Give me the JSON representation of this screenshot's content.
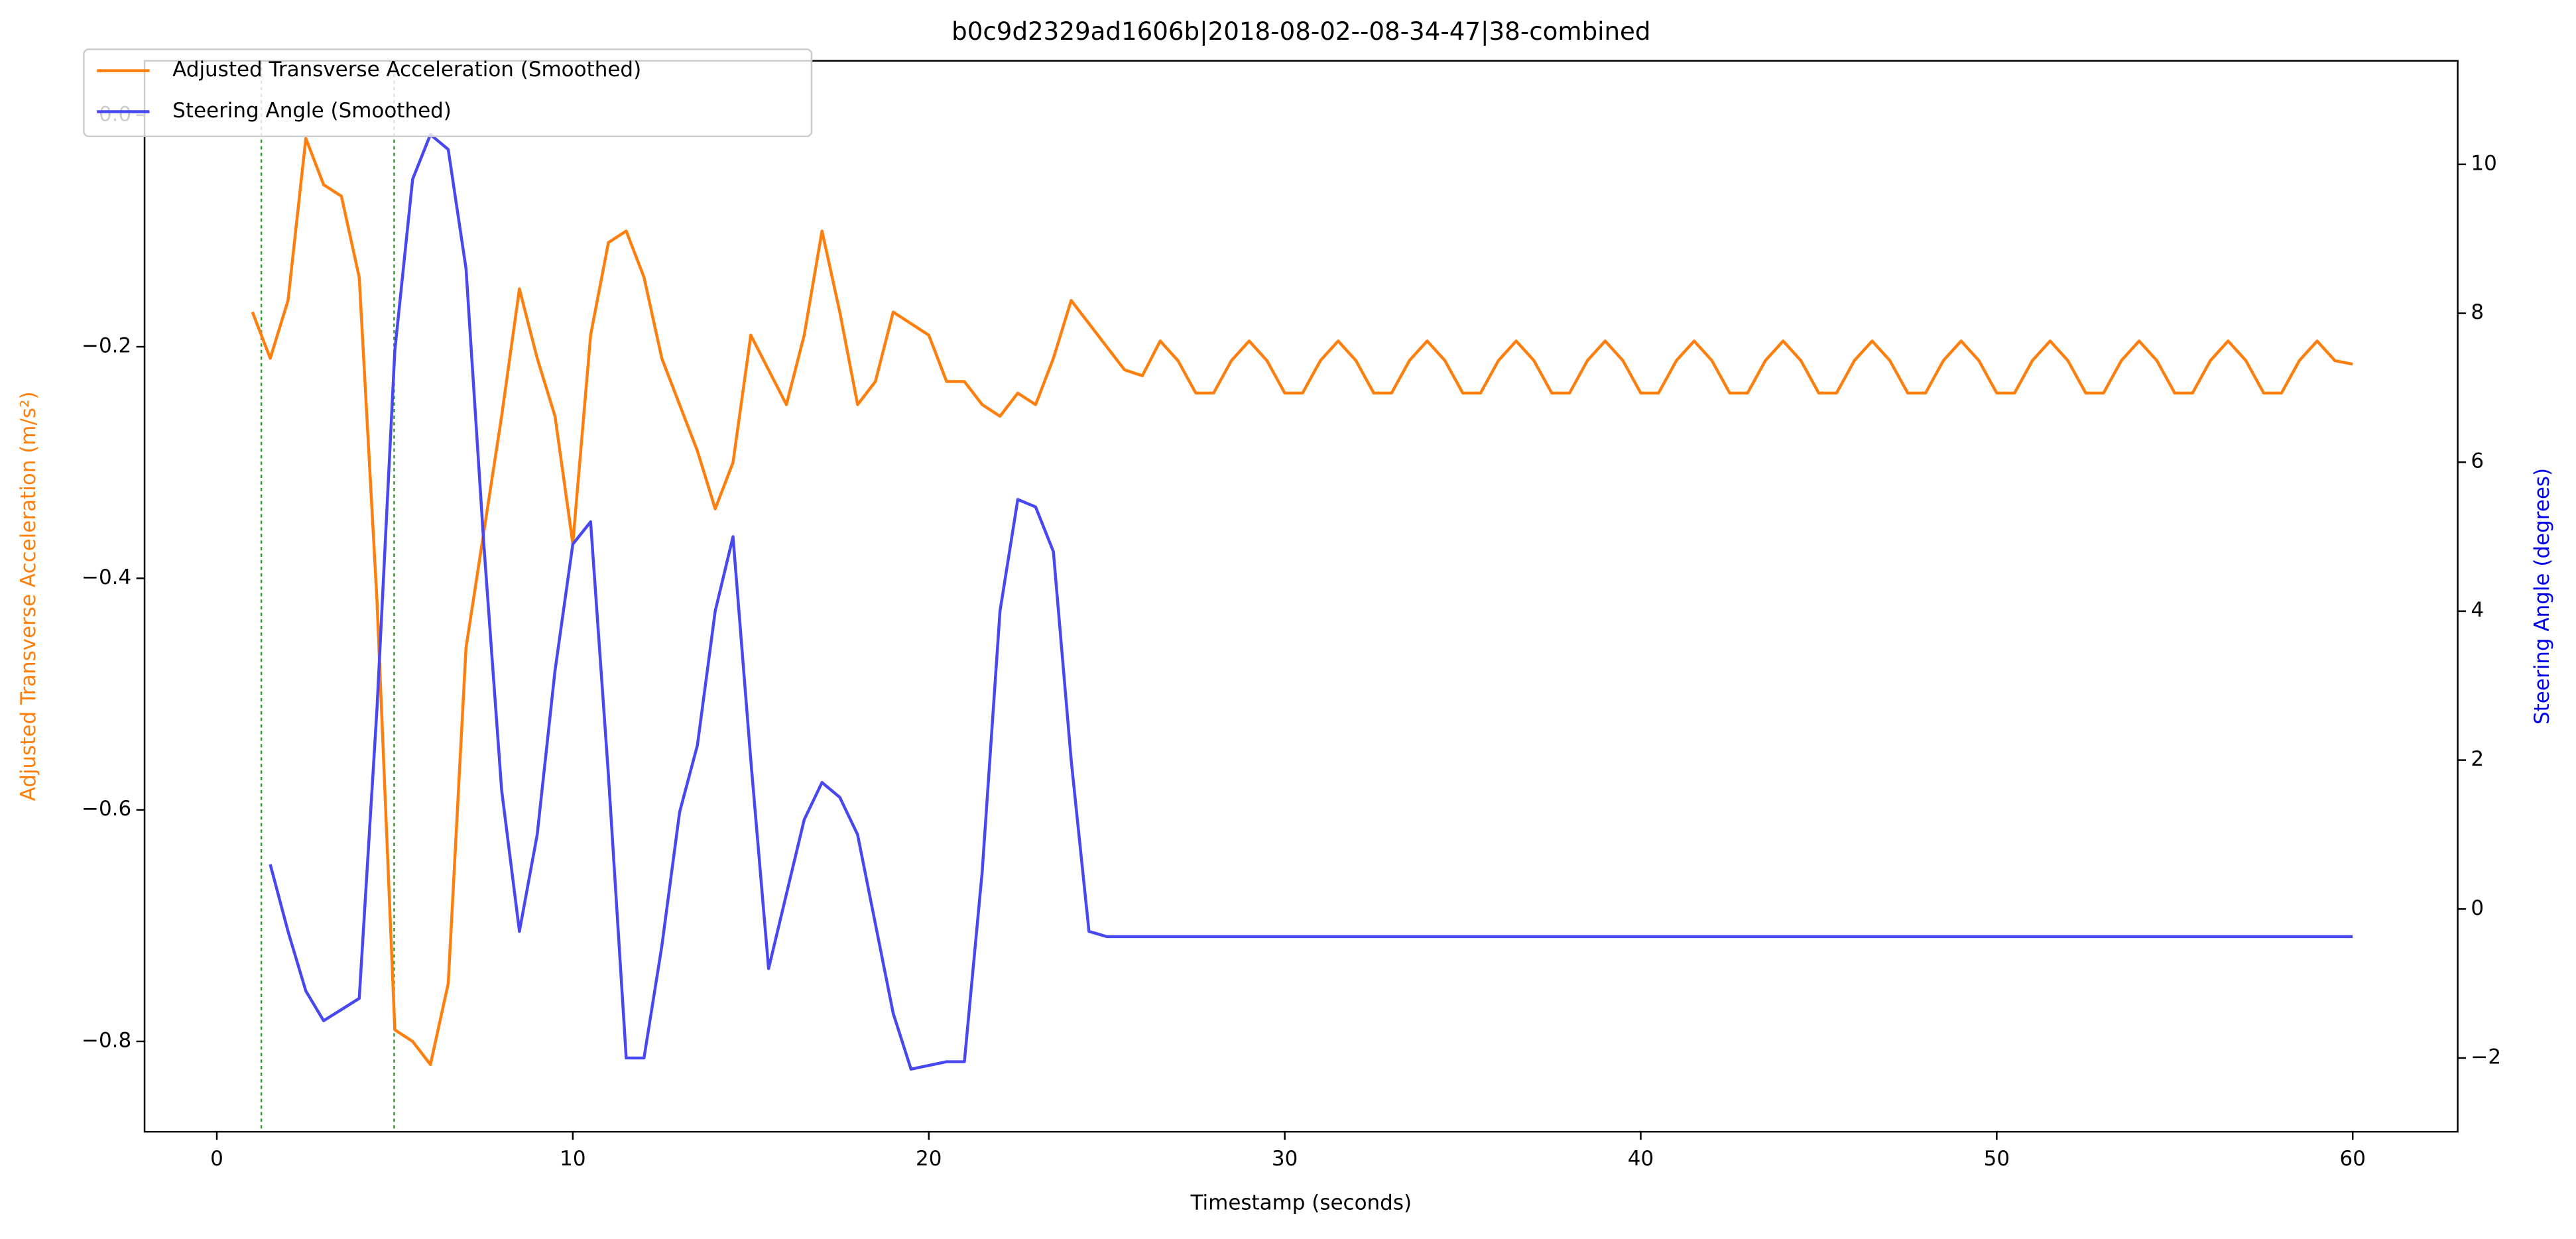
{
  "chart_data": {
    "type": "line",
    "title": "b0c9d2329ad1606b|2018-08-02--08-34-47|38-combined",
    "x_label": "Timestamp (seconds)",
    "y_label": "Adjusted Transverse Acceleration (m/s²)",
    "y2_label": "Steering Angle (degrees)",
    "legend": "upper left",
    "x": [
      1,
      1.5,
      2,
      2.5,
      3,
      3.5,
      4,
      4.5,
      5,
      5.5,
      6,
      6.5,
      7,
      7.5,
      8,
      8.5,
      9,
      9.5,
      10,
      10.5,
      11,
      11.5,
      12,
      12.5,
      13,
      13.5,
      14,
      14.5,
      15,
      15.5,
      16,
      16.5,
      17,
      17.5,
      18,
      18.5,
      19,
      19.5,
      20,
      20.5,
      21,
      21.5,
      22,
      22.5,
      23,
      23.5,
      24,
      24.5,
      25,
      25.5,
      26,
      26.5,
      27,
      27.5,
      28,
      28.5,
      29,
      29.5,
      30,
      30.5,
      31,
      31.5,
      32,
      32.5,
      33,
      33.5,
      34,
      34.5,
      35,
      35.5,
      36,
      36.5,
      37,
      37.5,
      38,
      38.5,
      39,
      39.5,
      40,
      40.5,
      41,
      41.5,
      42,
      42.5,
      43,
      43.5,
      44,
      44.5,
      45,
      45.5,
      46,
      46.5,
      47,
      47.5,
      48,
      48.5,
      49,
      49.5,
      50,
      50.5,
      51,
      51.5,
      52,
      52.5,
      53,
      53.5,
      54,
      54.5,
      55,
      55.5,
      56,
      56.5,
      57,
      57.5,
      58,
      58.5,
      59,
      59.5,
      60
    ],
    "series": [
      {
        "name": "Adjusted Transverse Acceleration (Smoothed)",
        "color": "#ff7f0e",
        "axis": "y",
        "values": [
          -0.17,
          -0.21,
          -0.16,
          -0.02,
          -0.06,
          -0.07,
          -0.14,
          -0.42,
          -0.79,
          -0.8,
          -0.82,
          -0.75,
          -0.46,
          -0.36,
          -0.26,
          -0.15,
          -0.21,
          -0.26,
          -0.37,
          -0.19,
          -0.11,
          -0.1,
          -0.14,
          -0.21,
          -0.25,
          -0.29,
          -0.34,
          -0.3,
          -0.19,
          -0.22,
          -0.25,
          -0.19,
          -0.1,
          -0.17,
          -0.25,
          -0.23,
          -0.17,
          -0.18,
          -0.19,
          -0.23,
          -0.23,
          -0.25,
          -0.26,
          -0.24,
          -0.25,
          -0.21,
          -0.16,
          -0.18,
          -0.2,
          -0.22,
          -0.225,
          -0.195,
          -0.212,
          -0.24,
          -0.24,
          -0.212,
          -0.195,
          -0.212,
          -0.24,
          -0.24,
          -0.212,
          -0.195,
          -0.212,
          -0.24,
          -0.24,
          -0.212,
          -0.195,
          -0.212,
          -0.24,
          -0.24,
          -0.212,
          -0.195,
          -0.212,
          -0.24,
          -0.24,
          -0.212,
          -0.195,
          -0.212,
          -0.24,
          -0.24,
          -0.212,
          -0.195,
          -0.212,
          -0.24,
          -0.24,
          -0.212,
          -0.195,
          -0.212,
          -0.24,
          -0.24,
          -0.212,
          -0.195,
          -0.212,
          -0.24,
          -0.24,
          -0.212,
          -0.195,
          -0.212,
          -0.24,
          -0.24,
          -0.212,
          -0.195,
          -0.212,
          -0.24,
          -0.24,
          -0.212,
          -0.195,
          -0.212,
          -0.24,
          -0.24,
          -0.212,
          -0.195,
          -0.212,
          -0.24,
          -0.24,
          -0.212,
          -0.195,
          -0.212,
          -0.215
        ]
      },
      {
        "name": "Steering Angle (Smoothed)",
        "color": "#4848f0",
        "axis": "y2",
        "values": [
          null,
          0.6,
          -0.3,
          -1.1,
          -1.5,
          -1.35,
          -1.2,
          2.7,
          7.5,
          9.8,
          10.4,
          10.2,
          8.6,
          4.9,
          1.6,
          -0.3,
          1.0,
          3.2,
          4.9,
          5.2,
          1.8,
          -2.0,
          -2.0,
          -0.5,
          1.3,
          2.2,
          4.0,
          5.0,
          2.0,
          -0.8,
          0.2,
          1.2,
          1.7,
          1.5,
          1.0,
          -0.2,
          -1.4,
          -2.15,
          -2.1,
          -2.05,
          -2.05,
          0.5,
          4.0,
          5.5,
          5.4,
          4.8,
          2.0,
          -0.3,
          -0.37,
          -0.37,
          -0.37,
          -0.37,
          -0.37,
          -0.37,
          -0.37,
          -0.37,
          -0.37,
          -0.37,
          -0.37,
          -0.37,
          -0.37,
          -0.37,
          -0.37,
          -0.37,
          -0.37,
          -0.37,
          -0.37,
          -0.37,
          -0.37,
          -0.37,
          -0.37,
          -0.37,
          -0.37,
          -0.37,
          -0.37,
          -0.37,
          -0.37,
          -0.37,
          -0.37,
          -0.37,
          -0.37,
          -0.37,
          -0.37,
          -0.37,
          -0.37,
          -0.37,
          -0.37,
          -0.37,
          -0.37,
          -0.37,
          -0.37,
          -0.37,
          -0.37,
          -0.37,
          -0.37,
          -0.37,
          -0.37,
          -0.37,
          -0.37,
          -0.37,
          -0.37,
          -0.37,
          -0.37,
          -0.37,
          -0.37,
          -0.37,
          -0.37,
          -0.37,
          -0.37,
          -0.37,
          -0.37,
          -0.37,
          -0.37,
          -0.37,
          -0.37,
          -0.37,
          -0.37,
          -0.37,
          -0.37
        ]
      }
    ],
    "vlines": [
      1.25,
      4.98
    ],
    "vline_color": "#2ca02c",
    "xlim": [
      -2.03,
      62.95
    ],
    "xticks": [
      0,
      10,
      20,
      30,
      40,
      50,
      60
    ],
    "ylim": [
      -0.878,
      0.047
    ],
    "yticks": [
      {
        "value": -0.8,
        "label": "−0.8"
      },
      {
        "value": -0.6,
        "label": "−0.6"
      },
      {
        "value": -0.4,
        "label": "−0.4"
      },
      {
        "value": -0.2,
        "label": "−0.2"
      },
      {
        "value": 0,
        "label": "0.0"
      }
    ],
    "y2lim": [
      -2.99,
      11.39
    ],
    "y2ticks": [
      {
        "value": -2,
        "label": "−2"
      },
      0,
      2,
      4,
      6,
      8,
      10
    ]
  }
}
